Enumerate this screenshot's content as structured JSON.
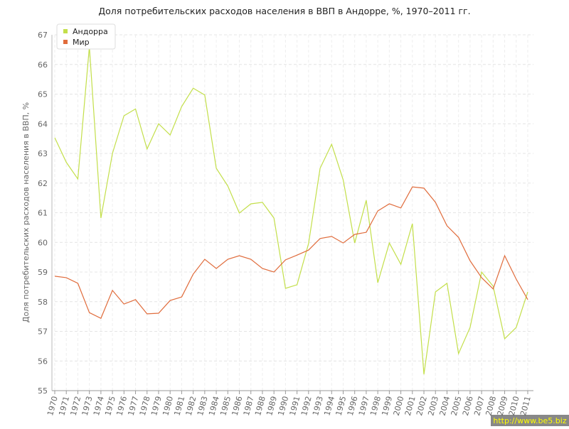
{
  "chart_data": {
    "type": "line",
    "title": "Доля потребительских расходов населения в ВВП в Андорре, %, 1970–2011 гг.",
    "y_label": "Доля потребительских расходов населения в ВВП, %",
    "categories": [
      "1970",
      "1971",
      "1972",
      "1973",
      "1974",
      "1975",
      "1976",
      "1977",
      "1978",
      "1979",
      "1980",
      "1981",
      "1982",
      "1983",
      "1984",
      "1985",
      "1986",
      "1987",
      "1988",
      "1989",
      "1990",
      "1991",
      "1992",
      "1993",
      "1994",
      "1995",
      "1996",
      "1997",
      "1998",
      "1999",
      "2000",
      "2001",
      "2002",
      "2003",
      "2004",
      "2005",
      "2006",
      "2007",
      "2008",
      "2009",
      "2010",
      "2011"
    ],
    "series": [
      {
        "name": "Андорра",
        "color": "#c3df4a",
        "values": [
          63.53,
          62.7,
          62.14,
          66.6,
          60.82,
          63.0,
          64.27,
          64.5,
          63.15,
          64.0,
          63.62,
          64.58,
          65.2,
          64.97,
          62.5,
          61.9,
          60.99,
          61.3,
          61.35,
          60.82,
          58.45,
          58.57,
          59.96,
          62.5,
          63.31,
          62.11,
          59.98,
          61.42,
          58.64,
          59.98,
          59.26,
          60.63,
          55.55,
          58.33,
          58.62,
          56.25,
          57.13,
          59.0,
          58.52,
          56.75,
          57.13,
          58.33
        ]
      },
      {
        "name": "Мир",
        "color": "#e06c3c",
        "values": [
          58.86,
          58.81,
          58.62,
          57.63,
          57.44,
          58.38,
          57.92,
          58.07,
          57.59,
          57.61,
          58.04,
          58.16,
          58.93,
          59.43,
          59.12,
          59.43,
          59.55,
          59.43,
          59.12,
          59.0,
          59.41,
          59.57,
          59.74,
          60.13,
          60.2,
          59.98,
          60.27,
          60.34,
          61.06,
          61.3,
          61.16,
          61.87,
          61.83,
          61.35,
          60.56,
          60.17,
          59.38,
          58.81,
          58.43,
          59.55,
          58.76,
          58.07
        ]
      }
    ],
    "ylim": [
      55,
      67
    ],
    "yticks": [
      55,
      56,
      57,
      58,
      59,
      60,
      61,
      62,
      63,
      64,
      65,
      66,
      67
    ],
    "grid": true,
    "legend": "top-left",
    "watermark": "http://www.be5.biz"
  }
}
